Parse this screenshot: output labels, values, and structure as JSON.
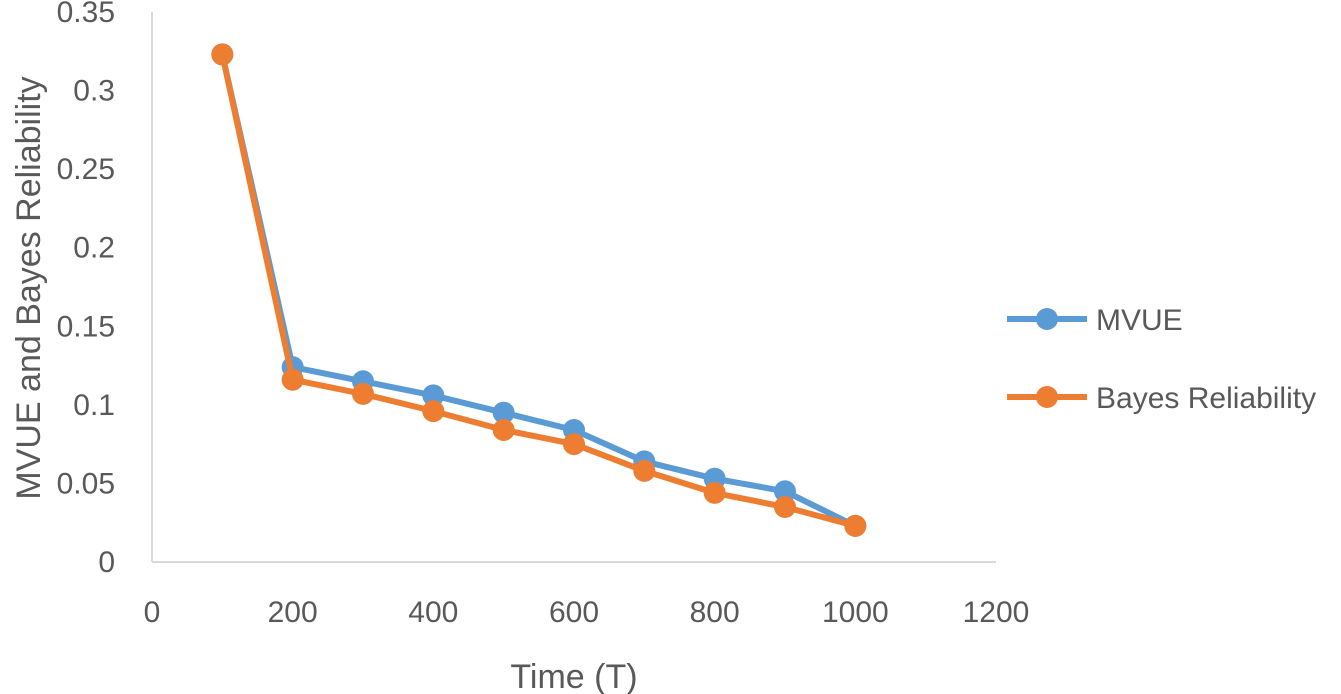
{
  "chart_data": {
    "type": "line",
    "xlabel": "Time (T)",
    "ylabel": "MVUE and Bayes Reliability",
    "xlim": [
      0,
      1200
    ],
    "ylim": [
      0,
      0.35
    ],
    "xticks": [
      "0",
      "200",
      "400",
      "600",
      "800",
      "1000",
      "1200"
    ],
    "yticks": [
      "0",
      "0.05",
      "0.1",
      "0.15",
      "0.2",
      "0.25",
      "0.3",
      "0.35"
    ],
    "x": [
      100,
      200,
      300,
      400,
      500,
      600,
      700,
      800,
      900,
      1000
    ],
    "grid": false,
    "legend_position": "right",
    "series": [
      {
        "name": "MVUE",
        "color": "#5B9BD5",
        "values": [
          0.323,
          0.124,
          0.115,
          0.106,
          0.095,
          0.084,
          0.064,
          0.053,
          0.045,
          0.023
        ]
      },
      {
        "name": "Bayes Reliability",
        "color": "#ED7D31",
        "values": [
          0.323,
          0.116,
          0.107,
          0.096,
          0.084,
          0.075,
          0.058,
          0.044,
          0.035,
          0.023
        ]
      }
    ]
  }
}
